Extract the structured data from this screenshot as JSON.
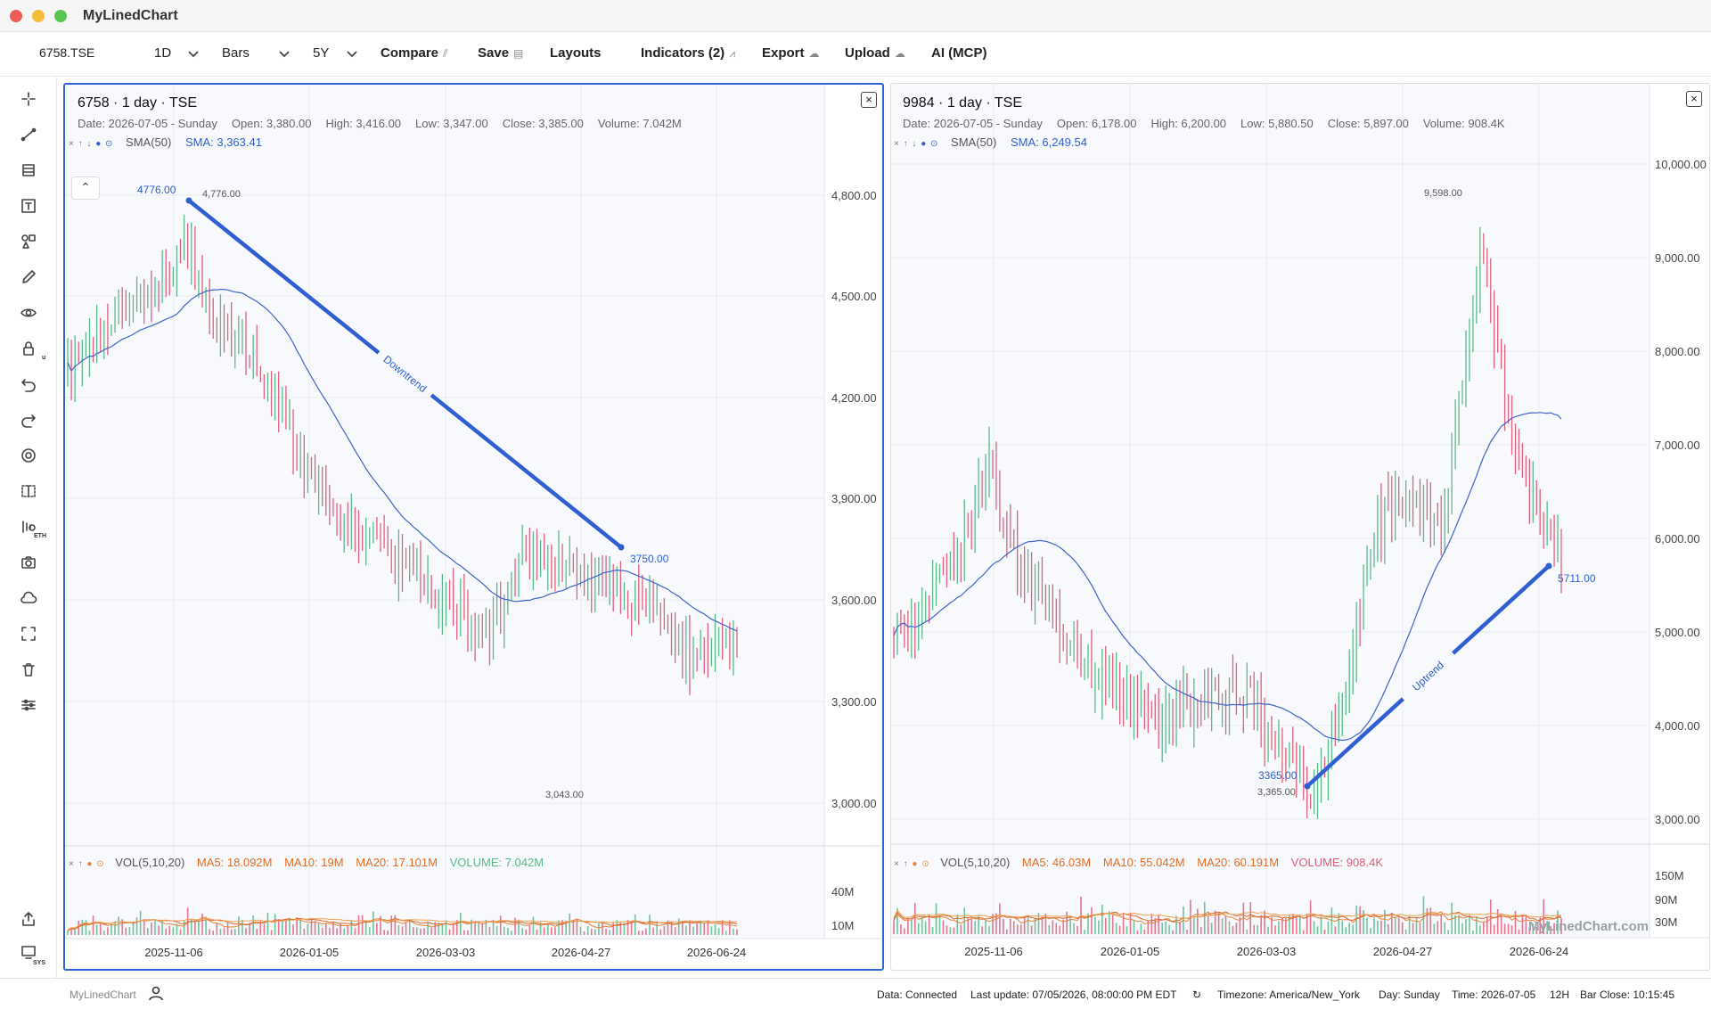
{
  "app": {
    "title": "MyLinedChart",
    "footer_brand": "MyLinedChart",
    "watermark": "MyLinedChart.com"
  },
  "toolbar": {
    "symbol": "6758.TSE",
    "interval": "1D",
    "chart_type": "Bars",
    "range": "5Y",
    "compare": "Compare",
    "save": "Save",
    "layouts": "Layouts",
    "indicators": "Indicators (2)",
    "export": "Export",
    "upload": "Upload",
    "ai": "AI (MCP)"
  },
  "sidebar": {
    "tools": [
      "crosshair-icon",
      "trendline-icon",
      "fib-icon",
      "text-tool-icon",
      "shapes-icon",
      "pencil-icon",
      "eye-icon",
      "lock-icon",
      "undo-icon",
      "redo-icon",
      "settings-icon",
      "compare-icon",
      "extended-hours-icon",
      "camera-icon",
      "cloud-icon",
      "fullscreen-icon",
      "trash-icon",
      "sliders-icon"
    ],
    "lock_sub": "u",
    "eth_sub": "ETH",
    "sys_sub": "SYS"
  },
  "panes": [
    {
      "title": "6758 · 1 day · TSE",
      "ohlc": {
        "date": "Date: 2026-07-05 - Sunday",
        "open": "Open: 3,380.00",
        "high": "High: 3,416.00",
        "low": "Low: 3,347.00",
        "close": "Close: 3,385.00",
        "volume": "Volume: 7.042M"
      },
      "sma_label": "SMA(50)",
      "sma_value": "SMA: 3,363.41",
      "vol_label": "VOL(5,10,20)",
      "vol": {
        "ma5": "MA5: 18.092M",
        "ma10": "MA10: 19M",
        "ma20": "MA20: 17.101M",
        "volume": "VOLUME: 7.042M"
      },
      "price_axis": [
        "4,800.00",
        "4,500.00",
        "4,200.00",
        "3,900.00",
        "3,600.00",
        "3,300.00",
        "3,000.00"
      ],
      "vol_axis": [
        "40M",
        "10M"
      ],
      "date_axis": [
        "2025-11-06",
        "2026-01-05",
        "2026-03-03",
        "2026-04-27",
        "2026-06-24"
      ],
      "trendline": {
        "label": "Downtrend",
        "start_label": "4776.00",
        "end_label": "3750.00"
      },
      "high_marker": "4,776.00",
      "low_marker": "3,043.00"
    },
    {
      "title": "9984 · 1 day · TSE",
      "ohlc": {
        "date": "Date: 2026-07-05 - Sunday",
        "open": "Open: 6,178.00",
        "high": "High: 6,200.00",
        "low": "Low: 5,880.50",
        "close": "Close: 5,897.00",
        "volume": "Volume: 908.4K"
      },
      "sma_label": "SMA(50)",
      "sma_value": "SMA: 6,249.54",
      "vol_label": "VOL(5,10,20)",
      "vol": {
        "ma5": "MA5: 46.03M",
        "ma10": "MA10: 55.042M",
        "ma20": "MA20: 60.191M",
        "volume": "VOLUME: 908.4K"
      },
      "price_axis": [
        "10,000.00",
        "9,000.00",
        "8,000.00",
        "7,000.00",
        "6,000.00",
        "5,000.00",
        "4,000.00",
        "3,000.00"
      ],
      "vol_axis": [
        "150M",
        "90M",
        "30M"
      ],
      "date_axis": [
        "2025-11-06",
        "2026-01-05",
        "2026-03-03",
        "2026-04-27",
        "2026-06-24"
      ],
      "trendline": {
        "label": "Uptrend",
        "start_label": "3365.00",
        "end_label": "5711.00"
      },
      "high_marker": "9,598.00",
      "low_marker": "3,365.00"
    }
  ],
  "status": {
    "data": "Data: Connected",
    "update": "Last update: 07/05/2026, 08:00:00 PM EDT",
    "timezone": "Timezone: America/New_York",
    "day": "Day: Sunday",
    "time": "Time: 2026-07-05",
    "clock": "12H",
    "bar_close": "Bar Close: 10:15:45"
  },
  "colors": {
    "up": "#5cb88a",
    "down": "#e0607e",
    "sma": "#3f63c8",
    "trend": "#2f5fd0",
    "ma": "#e8823a",
    "accent": "#2f62d4"
  }
}
